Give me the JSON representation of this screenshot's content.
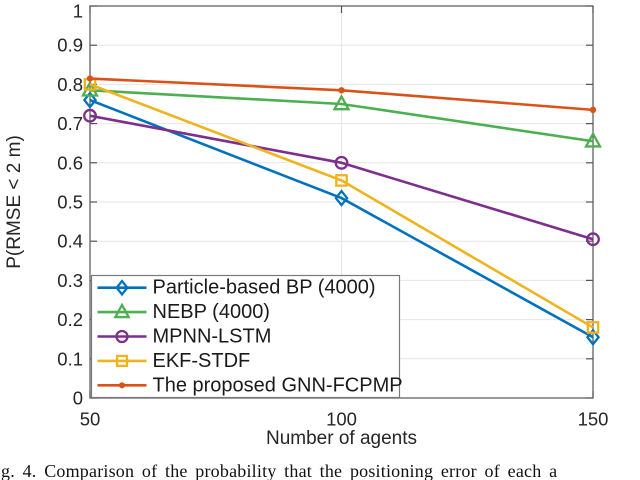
{
  "figure": {
    "caption": "g. 4.   Comparison of the probability that the positioning error of each a"
  },
  "chart_data": {
    "type": "line",
    "title": "",
    "xlabel": "Number of agents",
    "ylabel": "P(RMSE < 2 m)",
    "x": [
      50,
      100,
      150
    ],
    "xticks": [
      50,
      100,
      150
    ],
    "yticks": [
      0,
      0.1,
      0.2,
      0.3,
      0.4,
      0.5,
      0.6,
      0.7,
      0.8,
      0.9,
      1
    ],
    "xlim": [
      50,
      150
    ],
    "ylim": [
      0,
      1
    ],
    "grid": true,
    "legend_position": "bottom-left",
    "series": [
      {
        "name": "Particle-based BP (4000)",
        "marker": "diamond",
        "color": "#0072BD",
        "values": [
          0.76,
          0.51,
          0.155
        ]
      },
      {
        "name": "NEBP (4000)",
        "marker": "triangle",
        "color": "#4CAF50",
        "values": [
          0.785,
          0.75,
          0.655
        ]
      },
      {
        "name": "MPNN-LSTM",
        "marker": "circle",
        "color": "#7E2F8E",
        "values": [
          0.72,
          0.6,
          0.405
        ]
      },
      {
        "name": "EKF-STDF",
        "marker": "square",
        "color": "#EFB31E",
        "values": [
          0.8,
          0.555,
          0.18
        ]
      },
      {
        "name": "The proposed GNN-FCPMP",
        "marker": "dot",
        "color": "#D95319",
        "values": [
          0.815,
          0.785,
          0.735
        ]
      }
    ],
    "style": {
      "axis_color": "#545454",
      "grid_color": "#E6E6E6",
      "label_color": "#262626",
      "legend_border_color": "#7a7a7a"
    }
  }
}
